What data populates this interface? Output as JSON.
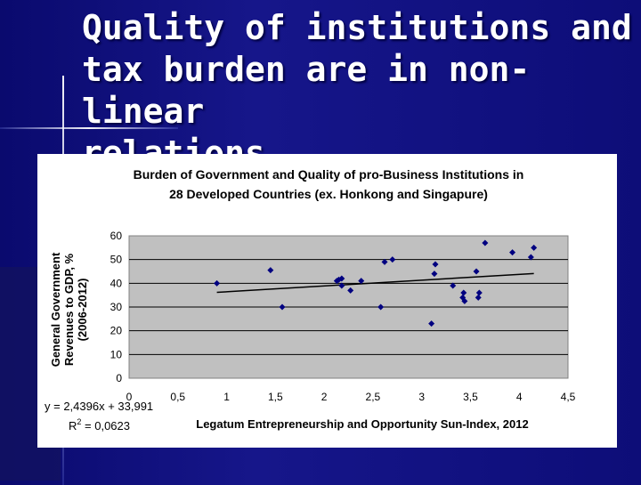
{
  "slide": {
    "title_lines": [
      "Quality of institutions and",
      "tax burden are in non-linear",
      "relations"
    ]
  },
  "chart_data": {
    "type": "scatter",
    "title_lines": [
      "Burden of Government and Quality of pro-Business Institutions in",
      "28 Developed Countries (ex. Honkong and Singapure)"
    ],
    "xlabel": "Legatum Entrepreneurship and Opportunity Sun-Index, 2012",
    "ylabel_lines": [
      "General Government",
      "Revenues to GDP, %",
      "(2006-2012)"
    ],
    "xlim": [
      0,
      4.5
    ],
    "ylim": [
      0,
      60
    ],
    "x_ticks": [
      "0",
      "0,5",
      "1",
      "1,5",
      "2",
      "2,5",
      "3",
      "3,5",
      "4",
      "4,5"
    ],
    "y_ticks": [
      "0",
      "10",
      "20",
      "30",
      "40",
      "50",
      "60"
    ],
    "grid": "horizontal",
    "plot_background": "#c0c0c0",
    "marker_color": "#000080",
    "equation": "y = 2,4396x + 33,991",
    "r2_label": "R",
    "r2_sup": "2",
    "r2_value": " = 0,0623",
    "trendline": {
      "slope": 2.4396,
      "intercept": 33.991,
      "x_range": [
        0.9,
        4.15
      ]
    },
    "points": [
      [
        0.9,
        40
      ],
      [
        1.45,
        45.5
      ],
      [
        1.57,
        30
      ],
      [
        2.13,
        41
      ],
      [
        2.15,
        41.5
      ],
      [
        2.18,
        39
      ],
      [
        2.18,
        42
      ],
      [
        2.27,
        37
      ],
      [
        2.38,
        41
      ],
      [
        2.58,
        30
      ],
      [
        2.62,
        49
      ],
      [
        2.7,
        50
      ],
      [
        3.1,
        23
      ],
      [
        3.13,
        44
      ],
      [
        3.14,
        48
      ],
      [
        3.32,
        39
      ],
      [
        3.42,
        34
      ],
      [
        3.43,
        36
      ],
      [
        3.44,
        32.5
      ],
      [
        3.56,
        45
      ],
      [
        3.58,
        34
      ],
      [
        3.59,
        36
      ],
      [
        3.65,
        57
      ],
      [
        3.93,
        53
      ],
      [
        4.12,
        51
      ],
      [
        4.15,
        55
      ]
    ]
  }
}
